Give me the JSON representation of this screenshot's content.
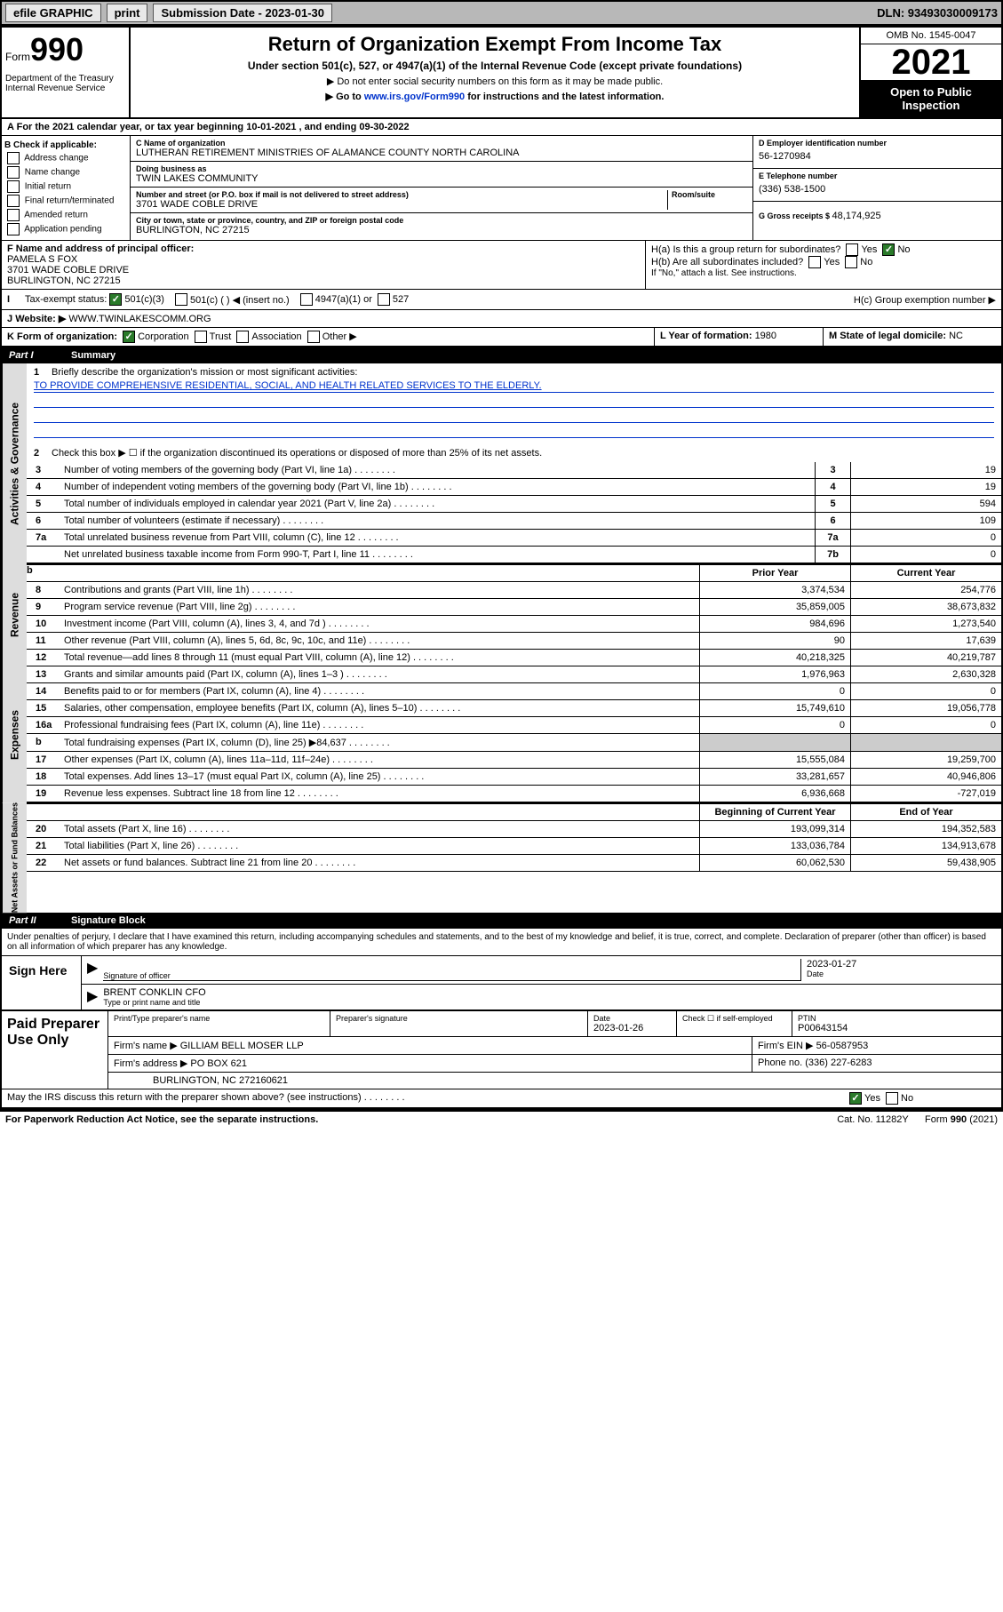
{
  "topbar": {
    "efile": "efile GRAPHIC",
    "print": "print",
    "sub_label": "Submission Date - 2023-01-30",
    "dln": "DLN: 93493030009173"
  },
  "header": {
    "form_word": "Form",
    "form_num": "990",
    "dept": "Department of the Treasury\nInternal Revenue Service",
    "title": "Return of Organization Exempt From Income Tax",
    "subtitle": "Under section 501(c), 527, or 4947(a)(1) of the Internal Revenue Code (except private foundations)",
    "note1": "▶ Do not enter social security numbers on this form as it may be made public.",
    "note2_pre": "▶ Go to ",
    "note2_link": "www.irs.gov/Form990",
    "note2_post": " for instructions and the latest information.",
    "omb": "OMB No. 1545-0047",
    "year": "2021",
    "inspection": "Open to Public Inspection"
  },
  "period": {
    "text": "For the 2021 calendar year, or tax year beginning 10-01-2021  , and ending 09-30-2022"
  },
  "section_b": {
    "label": "B Check if applicable:",
    "items": [
      "Address change",
      "Name change",
      "Initial return",
      "Final return/terminated",
      "Amended return",
      "Application pending"
    ]
  },
  "section_c": {
    "name_lbl": "C Name of organization",
    "name": "LUTHERAN RETIREMENT MINISTRIES OF ALAMANCE COUNTY NORTH CAROLINA",
    "dba_lbl": "Doing business as",
    "dba": "TWIN LAKES COMMUNITY",
    "addr_lbl": "Number and street (or P.O. box if mail is not delivered to street address)",
    "room_lbl": "Room/suite",
    "addr": "3701 WADE COBLE DRIVE",
    "city_lbl": "City or town, state or province, country, and ZIP or foreign postal code",
    "city": "BURLINGTON, NC  27215"
  },
  "section_d": {
    "ein_lbl": "D Employer identification number",
    "ein": "56-1270984",
    "phone_lbl": "E Telephone number",
    "phone": "(336) 538-1500",
    "gross_lbl": "G Gross receipts $ ",
    "gross": "48,174,925"
  },
  "section_f": {
    "lbl": "F Name and address of principal officer:",
    "name": "PAMELA S FOX",
    "addr": "3701 WADE COBLE DRIVE",
    "city": "BURLINGTON, NC  27215"
  },
  "section_h": {
    "ha": "H(a)  Is this a group return for subordinates?",
    "hb": "H(b)  Are all subordinates included?",
    "hb_note": "If \"No,\" attach a list. See instructions.",
    "hc": "H(c)  Group exemption number ▶",
    "yes": "Yes",
    "no": "No"
  },
  "tax_status": {
    "lbl": "Tax-exempt status:",
    "opt1": "501(c)(3)",
    "opt2": "501(c) (  ) ◀ (insert no.)",
    "opt3": "4947(a)(1) or",
    "opt4": "527"
  },
  "website": {
    "lbl": "Website: ▶",
    "val": "WWW.TWINLAKESCOMM.ORG"
  },
  "section_k": {
    "lbl": "K Form of organization:",
    "corp": "Corporation",
    "trust": "Trust",
    "assoc": "Association",
    "other": "Other ▶"
  },
  "section_l": {
    "lbl": "L Year of formation: ",
    "val": "1980"
  },
  "section_m": {
    "lbl": "M State of legal domicile: ",
    "val": "NC"
  },
  "part1": {
    "num": "Part I",
    "title": "Summary",
    "q1_lbl": "Briefly describe the organization's mission or most significant activities:",
    "q1_val": "TO PROVIDE COMPREHENSIVE RESIDENTIAL, SOCIAL, AND HEALTH RELATED SERVICES TO THE ELDERLY.",
    "q2": "Check this box ▶ ☐ if the organization discontinued its operations or disposed of more than 25% of its net assets.",
    "vlabels": {
      "gov": "Activities & Governance",
      "rev": "Revenue",
      "exp": "Expenses",
      "net": "Net Assets or Fund Balances"
    }
  },
  "gov_lines": [
    {
      "n": "3",
      "d": "Number of voting members of the governing body (Part VI, line 1a)",
      "c": "3",
      "v": "19"
    },
    {
      "n": "4",
      "d": "Number of independent voting members of the governing body (Part VI, line 1b)",
      "c": "4",
      "v": "19"
    },
    {
      "n": "5",
      "d": "Total number of individuals employed in calendar year 2021 (Part V, line 2a)",
      "c": "5",
      "v": "594"
    },
    {
      "n": "6",
      "d": "Total number of volunteers (estimate if necessary)",
      "c": "6",
      "v": "109"
    },
    {
      "n": "7a",
      "d": "Total unrelated business revenue from Part VIII, column (C), line 12",
      "c": "7a",
      "v": "0"
    },
    {
      "n": "",
      "d": "Net unrelated business taxable income from Form 990-T, Part I, line 11",
      "c": "7b",
      "v": "0"
    }
  ],
  "col_hdrs": {
    "prior": "Prior Year",
    "current": "Current Year",
    "begin": "Beginning of Current Year",
    "end": "End of Year"
  },
  "rev_lines": [
    {
      "n": "8",
      "d": "Contributions and grants (Part VIII, line 1h)",
      "p": "3,374,534",
      "c": "254,776"
    },
    {
      "n": "9",
      "d": "Program service revenue (Part VIII, line 2g)",
      "p": "35,859,005",
      "c": "38,673,832"
    },
    {
      "n": "10",
      "d": "Investment income (Part VIII, column (A), lines 3, 4, and 7d )",
      "p": "984,696",
      "c": "1,273,540"
    },
    {
      "n": "11",
      "d": "Other revenue (Part VIII, column (A), lines 5, 6d, 8c, 9c, 10c, and 11e)",
      "p": "90",
      "c": "17,639"
    },
    {
      "n": "12",
      "d": "Total revenue—add lines 8 through 11 (must equal Part VIII, column (A), line 12)",
      "p": "40,218,325",
      "c": "40,219,787"
    }
  ],
  "exp_lines": [
    {
      "n": "13",
      "d": "Grants and similar amounts paid (Part IX, column (A), lines 1–3 )",
      "p": "1,976,963",
      "c": "2,630,328"
    },
    {
      "n": "14",
      "d": "Benefits paid to or for members (Part IX, column (A), line 4)",
      "p": "0",
      "c": "0"
    },
    {
      "n": "15",
      "d": "Salaries, other compensation, employee benefits (Part IX, column (A), lines 5–10)",
      "p": "15,749,610",
      "c": "19,056,778"
    },
    {
      "n": "16a",
      "d": "Professional fundraising fees (Part IX, column (A), line 11e)",
      "p": "0",
      "c": "0"
    },
    {
      "n": "b",
      "d": "Total fundraising expenses (Part IX, column (D), line 25) ▶84,637",
      "p": "",
      "c": "",
      "grey": true
    },
    {
      "n": "17",
      "d": "Other expenses (Part IX, column (A), lines 11a–11d, 11f–24e)",
      "p": "15,555,084",
      "c": "19,259,700"
    },
    {
      "n": "18",
      "d": "Total expenses. Add lines 13–17 (must equal Part IX, column (A), line 25)",
      "p": "33,281,657",
      "c": "40,946,806"
    },
    {
      "n": "19",
      "d": "Revenue less expenses. Subtract line 18 from line 12",
      "p": "6,936,668",
      "c": "-727,019"
    }
  ],
  "net_lines": [
    {
      "n": "20",
      "d": "Total assets (Part X, line 16)",
      "p": "193,099,314",
      "c": "194,352,583"
    },
    {
      "n": "21",
      "d": "Total liabilities (Part X, line 26)",
      "p": "133,036,784",
      "c": "134,913,678"
    },
    {
      "n": "22",
      "d": "Net assets or fund balances. Subtract line 21 from line 20",
      "p": "60,062,530",
      "c": "59,438,905"
    }
  ],
  "part2": {
    "num": "Part II",
    "title": "Signature Block"
  },
  "declare": "Under penalties of perjury, I declare that I have examined this return, including accompanying schedules and statements, and to the best of my knowledge and belief, it is true, correct, and complete. Declaration of preparer (other than officer) is based on all information of which preparer has any knowledge.",
  "sign": {
    "here": "Sign Here",
    "officer_sig": "Signature of officer",
    "date": "Date",
    "date_val": "2023-01-27",
    "name": "BRENT CONKLIN CFO",
    "name_lbl": "Type or print name and title"
  },
  "prep": {
    "left": "Paid Preparer Use Only",
    "h1": "Print/Type preparer's name",
    "h2": "Preparer's signature",
    "h3": "Date",
    "h3v": "2023-01-26",
    "h4": "Check ☐ if self-employed",
    "h5": "PTIN",
    "h5v": "P00643154",
    "firm_lbl": "Firm's name    ▶",
    "firm": "GILLIAM BELL MOSER LLP",
    "ein_lbl": "Firm's EIN ▶",
    "ein": "56-0587953",
    "addr_lbl": "Firm's address ▶",
    "addr": "PO BOX 621",
    "addr2": "BURLINGTON, NC  272160621",
    "phone_lbl": "Phone no.",
    "phone": "(336) 227-6283"
  },
  "discuss": {
    "q": "May the IRS discuss this return with the preparer shown above? (see instructions)",
    "yes": "Yes",
    "no": "No"
  },
  "footer": {
    "pra": "For Paperwork Reduction Act Notice, see the separate instructions.",
    "cat": "Cat. No. 11282Y",
    "form": "Form 990 (2021)"
  },
  "A_lbl": "A"
}
